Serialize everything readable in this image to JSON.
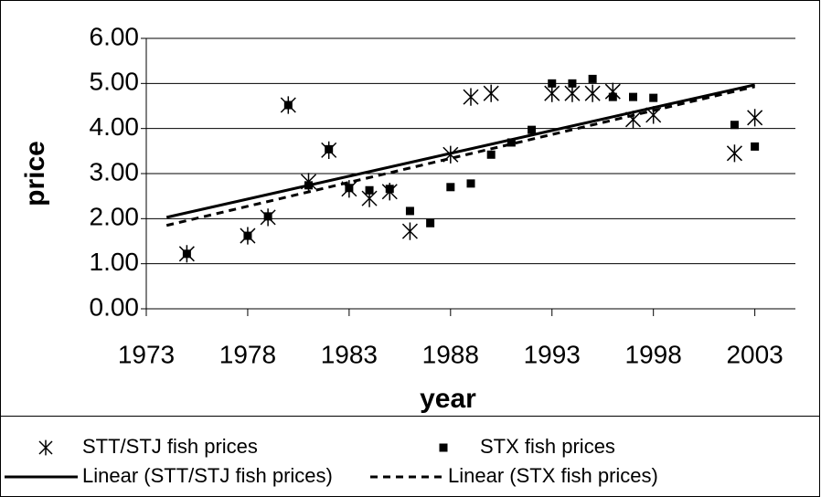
{
  "chart_data": {
    "type": "scatter",
    "x_label": "year",
    "y_label": "price",
    "xlim": [
      1973,
      2005
    ],
    "xticks": [
      1973,
      1978,
      1983,
      1988,
      1993,
      1998,
      2003
    ],
    "ylim": [
      0,
      6
    ],
    "yticks": [
      {
        "value": 0,
        "label": "0.00"
      },
      {
        "value": 1,
        "label": "1.00"
      },
      {
        "value": 2,
        "label": "2.00"
      },
      {
        "value": 3,
        "label": "3.00"
      },
      {
        "value": 4,
        "label": "4.00"
      },
      {
        "value": 5,
        "label": "5.00"
      },
      {
        "value": 6,
        "label": "6.00"
      }
    ],
    "grid": true,
    "legend": "bottom",
    "series": [
      {
        "name": "STT/STJ fish prices",
        "color": "#000000",
        "marker": "star",
        "x": [
          1975,
          1978,
          1979,
          1980,
          1981,
          1982,
          1983,
          1984,
          1985,
          1986,
          1988,
          1989,
          1990,
          1993,
          1994,
          1995,
          1996,
          1997,
          1998,
          2002,
          2003
        ],
        "values": [
          1.22,
          1.62,
          2.03,
          4.52,
          2.82,
          3.52,
          2.66,
          2.45,
          2.6,
          1.72,
          3.42,
          4.7,
          4.78,
          4.78,
          4.78,
          4.78,
          4.82,
          4.2,
          4.3,
          3.45,
          4.24
        ]
      },
      {
        "name": "STX fish prices",
        "color": "#000000",
        "marker": "square",
        "x": [
          1975,
          1978,
          1979,
          1980,
          1981,
          1982,
          1983,
          1984,
          1985,
          1986,
          1987,
          1988,
          1989,
          1990,
          1991,
          1992,
          1993,
          1994,
          1995,
          1996,
          1997,
          1998,
          2002,
          2003
        ],
        "values": [
          1.22,
          1.62,
          2.05,
          4.52,
          2.74,
          3.54,
          2.68,
          2.63,
          2.66,
          2.17,
          1.9,
          2.7,
          2.78,
          3.42,
          3.69,
          3.97,
          5.0,
          5.0,
          5.1,
          4.7,
          4.7,
          4.68,
          4.08,
          3.6
        ]
      },
      {
        "name": "Linear (STT/STJ fish prices)",
        "color": "#000000",
        "marker": "line",
        "dash": "solid",
        "x": [
          1974,
          2003
        ],
        "values": [
          2.03,
          4.97
        ]
      },
      {
        "name": "Linear (STX fish prices)",
        "color": "#000000",
        "marker": "line",
        "dash": "dashed",
        "x": [
          1974,
          2003
        ],
        "values": [
          1.85,
          4.93
        ]
      }
    ]
  }
}
